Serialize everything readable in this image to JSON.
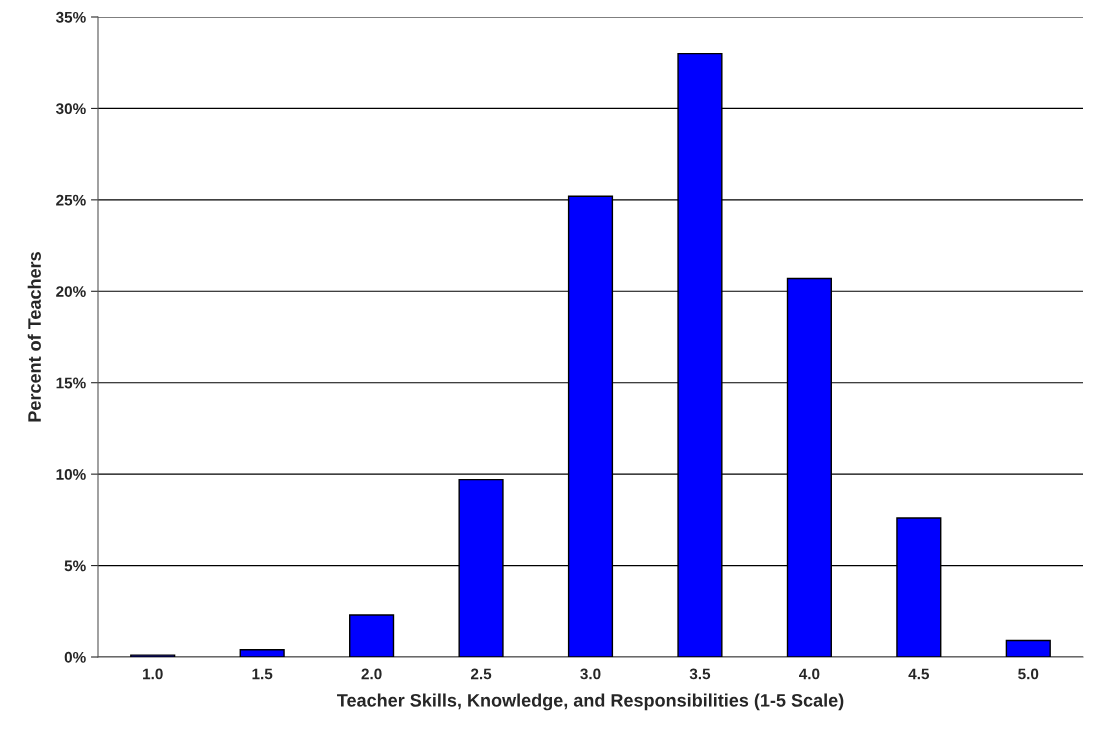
{
  "chart_data": {
    "type": "bar",
    "xlabel": "Teacher Skills, Knowledge, and Responsibilities (1-5 Scale)",
    "ylabel": "Percent of Teachers",
    "categories": [
      "1.0",
      "1.5",
      "2.0",
      "2.5",
      "3.0",
      "3.5",
      "4.0",
      "4.5",
      "5.0"
    ],
    "values": [
      0.1,
      0.4,
      2.3,
      9.7,
      25.2,
      33.0,
      20.7,
      7.6,
      0.9
    ],
    "color": "#0000ff",
    "ylim": [
      0,
      35
    ],
    "yticks": [
      {
        "value": 0,
        "label": "0%"
      },
      {
        "value": 5,
        "label": "5%"
      },
      {
        "value": 10,
        "label": "10%"
      },
      {
        "value": 15,
        "label": "15%"
      },
      {
        "value": 20,
        "label": "20%"
      },
      {
        "value": 25,
        "label": "25%"
      },
      {
        "value": 30,
        "label": "30%"
      },
      {
        "value": 35,
        "label": "35%"
      }
    ],
    "grid": "y"
  }
}
